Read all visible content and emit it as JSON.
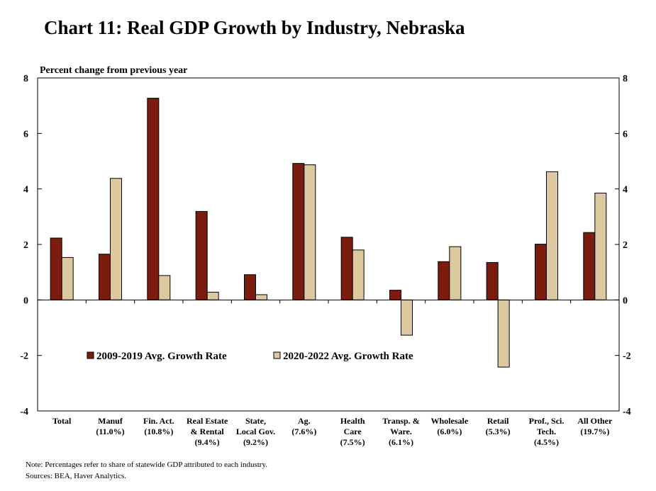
{
  "chart_data": {
    "type": "bar",
    "title": "Chart 11: Real GDP Growth by Industry, Nebraska",
    "ylabel": "Percent change from previous year",
    "ylim": [
      -4,
      8
    ],
    "yticks": [
      -4,
      -2,
      0,
      2,
      4,
      6,
      8
    ],
    "categories": [
      [
        "Total"
      ],
      [
        "Manuf",
        "(11.0%)"
      ],
      [
        "Fin. Act.",
        "(10.8%)"
      ],
      [
        "Real Estate",
        "& Rental",
        "(9.4%)"
      ],
      [
        "State,",
        "Local Gov.",
        "(9.2%)"
      ],
      [
        "Ag.",
        "(7.6%)"
      ],
      [
        "Health",
        "Care",
        "(7.5%)"
      ],
      [
        "Transp. &",
        "Ware.",
        "(6.1%)"
      ],
      [
        "Wholesale",
        "(6.0%)"
      ],
      [
        "Retail",
        "(5.3%)"
      ],
      [
        "Prof., Sci.",
        "Tech.",
        "(4.5%)"
      ],
      [
        "All Other",
        "(19.7%)"
      ]
    ],
    "series": [
      {
        "name": "2009-2019 Avg. Growth Rate",
        "color": "#7B1C0E",
        "values": [
          2.23,
          1.65,
          7.27,
          3.19,
          0.91,
          4.92,
          2.26,
          0.35,
          1.38,
          1.35,
          2.01,
          2.43
        ]
      },
      {
        "name": "2020-2022 Avg. Growth Rate",
        "color": "#DCC9A0",
        "values": [
          1.53,
          4.38,
          0.88,
          0.28,
          0.19,
          4.87,
          1.8,
          -1.27,
          1.92,
          -2.42,
          4.62,
          3.85
        ]
      }
    ],
    "grid": false,
    "legend": "lower-left inside"
  },
  "notes": {
    "note": "Note: Percentages refer to share of statewide GDP attributed to each industry.",
    "sources": "Sources: BEA,  Haver Analytics."
  }
}
